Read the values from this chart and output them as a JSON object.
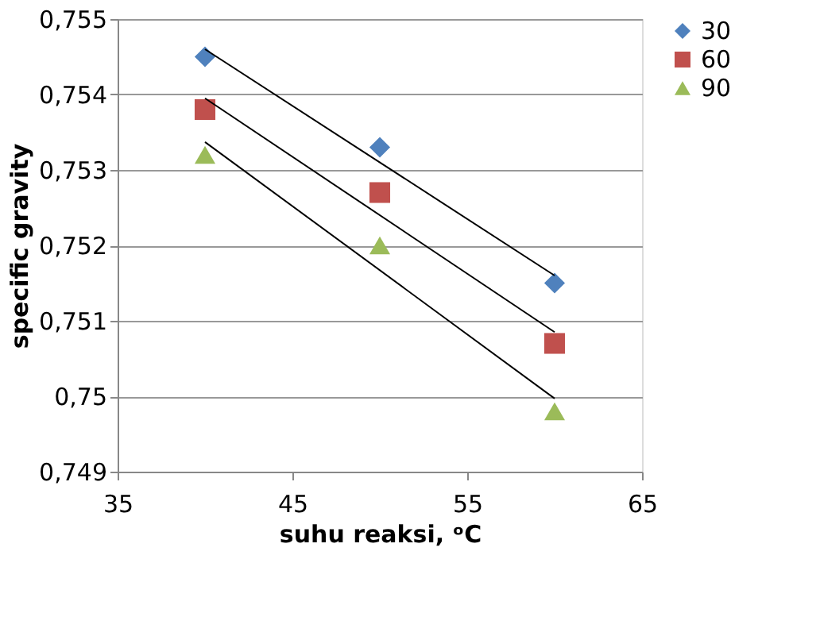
{
  "chart_data": {
    "type": "scatter",
    "xlabel": "suhu reaksi, ᵒC",
    "ylabel": "specific gravity",
    "xlim": [
      35,
      65
    ],
    "xticks": [
      35,
      45,
      55,
      65
    ],
    "ylim": [
      0.749,
      0.755
    ],
    "yticks": [
      {
        "value": 0.749,
        "label": "0,749"
      },
      {
        "value": 0.75,
        "label": "0,75"
      },
      {
        "value": 0.751,
        "label": "0,751"
      },
      {
        "value": 0.752,
        "label": "0,752"
      },
      {
        "value": 0.753,
        "label": "0,753"
      },
      {
        "value": 0.754,
        "label": "0,754"
      },
      {
        "value": 0.755,
        "label": "0,755"
      }
    ],
    "grid": "y",
    "legend": "right",
    "series": [
      {
        "name": "30",
        "color": "#4f81bd",
        "marker": "diamond",
        "x": [
          40,
          50,
          60
        ],
        "values": [
          0.7545,
          0.7533,
          0.7515
        ]
      },
      {
        "name": "60",
        "color": "#c0504d",
        "marker": "square",
        "x": [
          40,
          50,
          60
        ],
        "values": [
          0.7538,
          0.7527,
          0.7507
        ]
      },
      {
        "name": "90",
        "color": "#9bbb59",
        "marker": "triangle",
        "x": [
          40,
          50,
          60
        ],
        "values": [
          0.7532,
          0.752,
          0.7498
        ]
      },
      {
        "type": "line",
        "color": "#000000",
        "x": [
          40,
          60
        ],
        "values": [
          0.7546,
          0.7516
        ]
      },
      {
        "type": "line",
        "color": "#000000",
        "x": [
          40,
          60
        ],
        "values": [
          0.75395,
          0.75085
        ]
      },
      {
        "type": "line",
        "color": "#000000",
        "x": [
          40,
          60
        ],
        "values": [
          0.75337,
          0.74997
        ]
      }
    ]
  }
}
